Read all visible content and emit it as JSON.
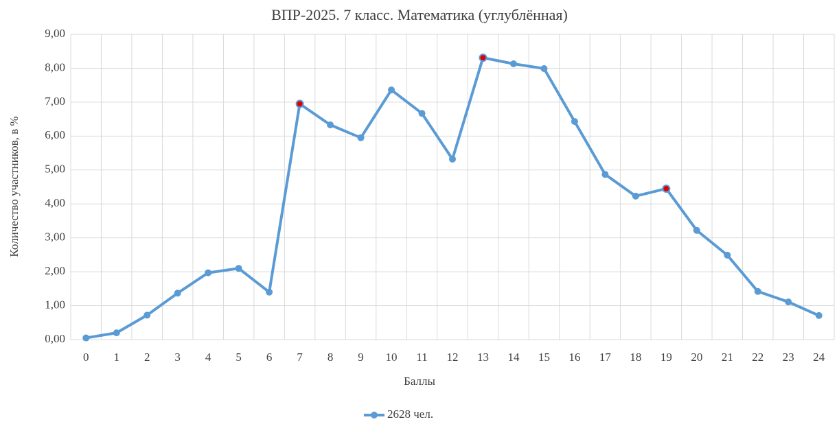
{
  "chart_data": {
    "type": "line",
    "title": "ВПР-2025. 7 класс. Математика (углублённая)",
    "x_label": "Баллы",
    "y_label": "Количество участников, в %",
    "categories": [
      "0",
      "1",
      "2",
      "3",
      "4",
      "5",
      "6",
      "7",
      "8",
      "9",
      "10",
      "11",
      "12",
      "13",
      "14",
      "15",
      "16",
      "17",
      "18",
      "19",
      "20",
      "21",
      "22",
      "23",
      "24"
    ],
    "series": [
      {
        "name": "2628 чел.",
        "color": "#5b9bd5",
        "values": [
          0.05,
          0.2,
          0.72,
          1.37,
          1.97,
          2.1,
          1.4,
          6.95,
          6.33,
          5.95,
          7.36,
          6.67,
          5.32,
          8.31,
          8.13,
          7.99,
          6.43,
          4.87,
          4.23,
          4.45,
          3.22,
          2.49,
          1.42,
          1.11,
          0.71
        ]
      }
    ],
    "highlight": {
      "indices": [
        7,
        13,
        19
      ],
      "color": "#e00000"
    },
    "ylim": [
      0,
      9
    ],
    "yticks": [
      {
        "value": 0,
        "label": "0,00"
      },
      {
        "value": 1,
        "label": "1,00"
      },
      {
        "value": 2,
        "label": "2,00"
      },
      {
        "value": 3,
        "label": "3,00"
      },
      {
        "value": 4,
        "label": "4,00"
      },
      {
        "value": 5,
        "label": "5,00"
      },
      {
        "value": 6,
        "label": "6,00"
      },
      {
        "value": 7,
        "label": "7,00"
      },
      {
        "value": 8,
        "label": "8,00"
      },
      {
        "value": 9,
        "label": "9,00"
      }
    ],
    "grid": true,
    "legend": "bottom"
  }
}
